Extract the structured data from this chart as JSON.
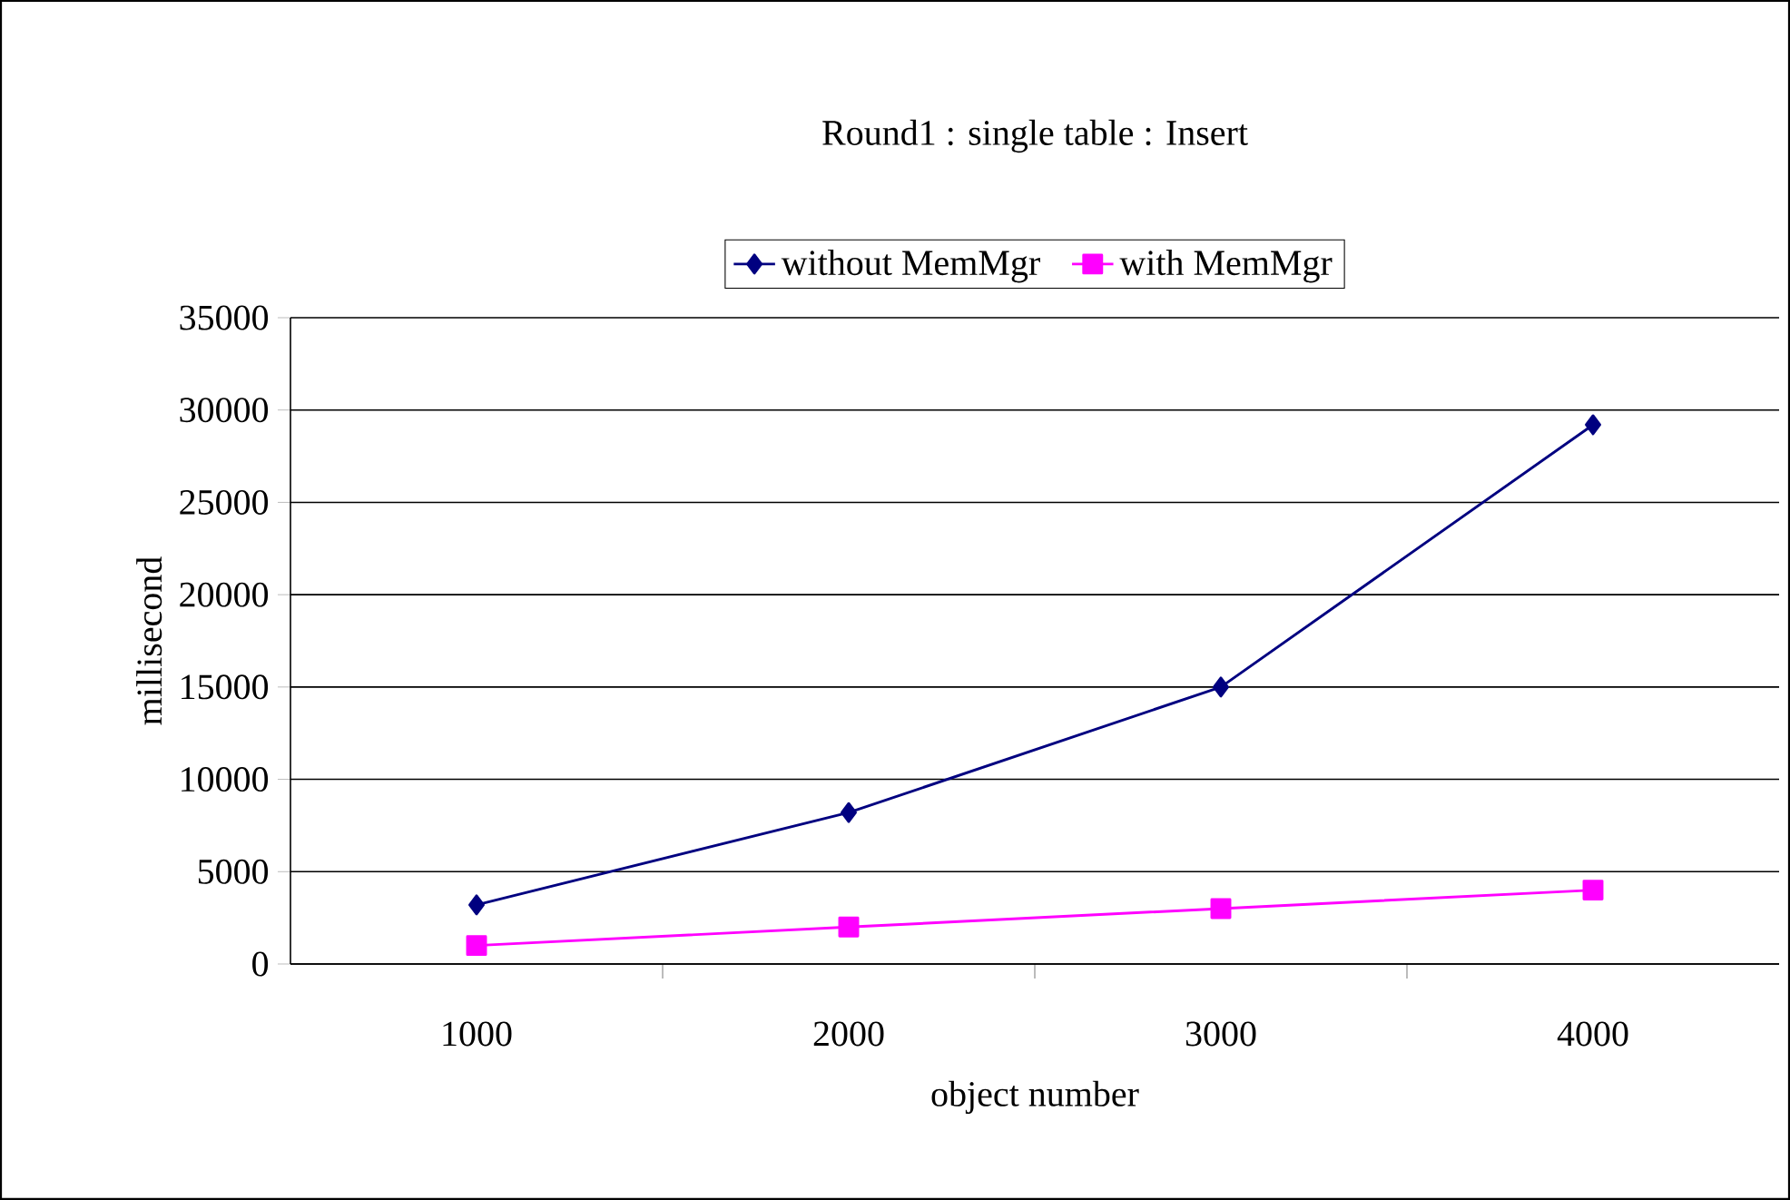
{
  "chart_data": {
    "type": "line",
    "title": "Round1 : single table : Insert",
    "xlabel": "object number",
    "ylabel": "millisecond",
    "categories": [
      "1000",
      "2000",
      "3000",
      "4000"
    ],
    "series": [
      {
        "name": "without MemMgr",
        "color": "#000080",
        "marker": "diamond",
        "values": [
          3200,
          8200,
          15000,
          29200
        ]
      },
      {
        "name": "with MemMgr",
        "color": "#ff00ff",
        "marker": "square",
        "values": [
          1000,
          2000,
          3000,
          4000
        ]
      }
    ],
    "ylim": [
      0,
      35000
    ],
    "yticks": [
      0,
      5000,
      10000,
      15000,
      20000,
      25000,
      30000,
      35000
    ],
    "grid": "y",
    "legend": "top"
  }
}
